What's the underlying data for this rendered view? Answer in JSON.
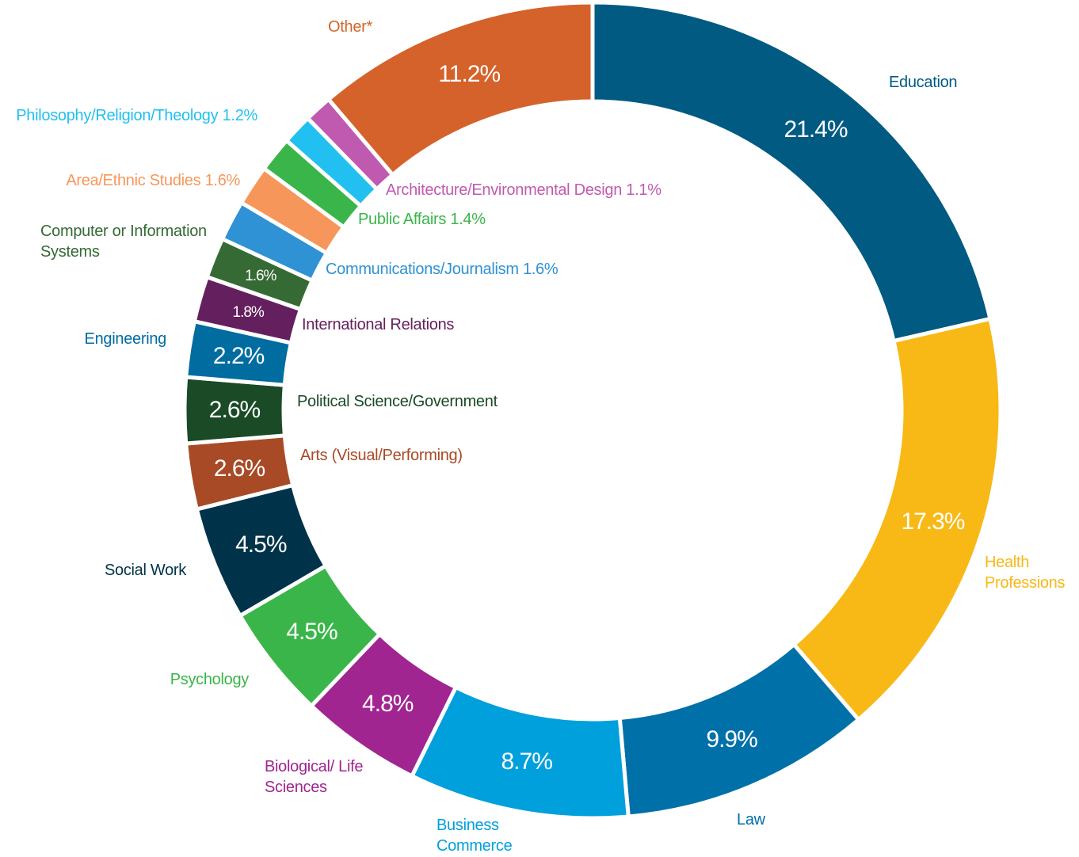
{
  "chart_data": {
    "type": "donut",
    "categories": [
      "Education",
      "Health Professions",
      "Law",
      "Business Commerce",
      "Biological/ Life Sciences",
      "Psychology",
      "Social Work",
      "Arts (Visual/Performing)",
      "Political Science/Government",
      "Engineering",
      "International Relations",
      "Computer or Information Systems",
      "Communications/Journalism",
      "Area/Ethnic Studies",
      "Public Affairs",
      "Philosophy/Religion/Theology",
      "Architecture/Environmental Design",
      "Other*"
    ],
    "values": [
      21.4,
      17.3,
      9.9,
      8.7,
      4.8,
      4.5,
      4.5,
      2.6,
      2.6,
      2.2,
      1.8,
      1.6,
      1.6,
      1.6,
      1.4,
      1.2,
      1.1,
      11.2
    ],
    "value_labels": [
      "21.4%",
      "17.3%",
      "9.9%",
      "8.7%",
      "4.8%",
      "4.5%",
      "4.5%",
      "2.6%",
      "2.6%",
      "2.2%",
      "1.8%",
      "1.6%",
      "1.6%",
      "1.6%",
      "1.4%",
      "1.2%",
      "1.1%",
      "11.2%"
    ],
    "colors": [
      "#005a82",
      "#f8b816",
      "#0070a8",
      "#00a0dc",
      "#a02590",
      "#3ab54a",
      "#003349",
      "#a84a26",
      "#1a4a26",
      "#006ca0",
      "#64205e",
      "#356a35",
      "#2e92d4",
      "#f7965a",
      "#3ab54a",
      "#22c0f0",
      "#c05ab0",
      "#d4622a"
    ]
  }
}
